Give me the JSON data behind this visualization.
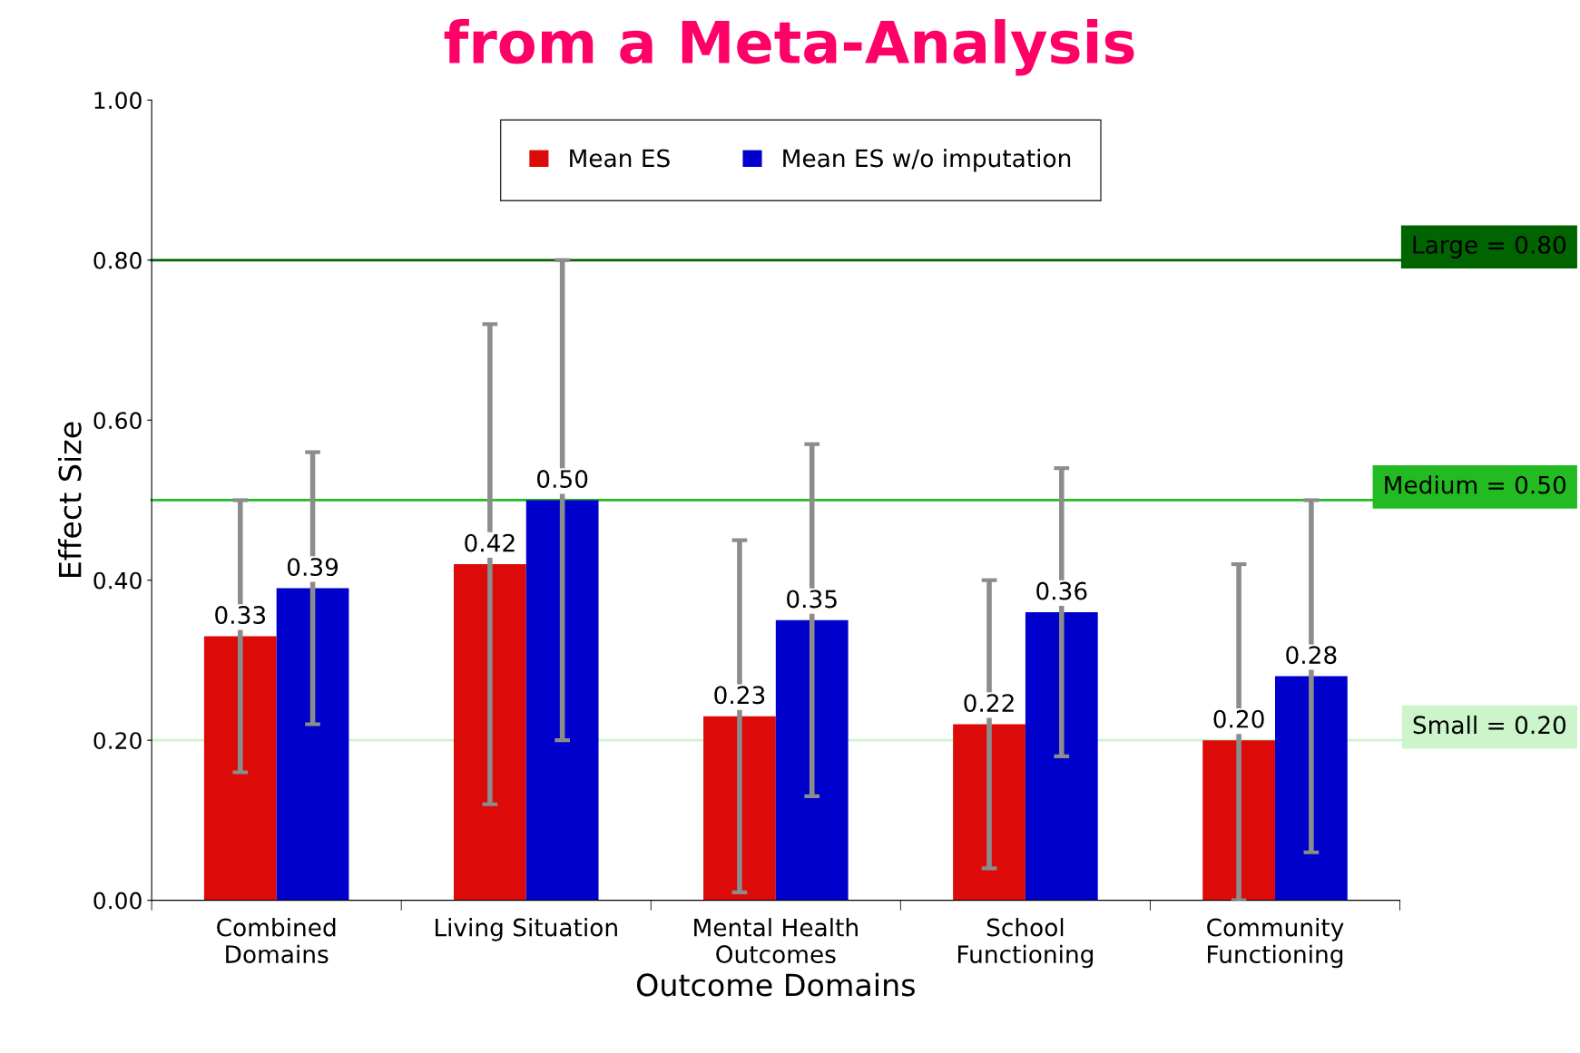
{
  "chart_data": {
    "type": "bar",
    "title": "from a Meta-Analysis",
    "xlabel": "Outcome Domains",
    "ylabel": "Effect Size",
    "categories": [
      "Combined\nDomains",
      "Living Situation",
      "Mental Health\nOutcomes",
      "School\nFunctioning",
      "Community\nFunctioning"
    ],
    "series": [
      {
        "name": "Mean ES",
        "color": "#dd0a0a",
        "values": [
          0.33,
          0.42,
          0.23,
          0.22,
          0.2
        ],
        "value_labels": [
          "0.33",
          "0.42",
          "0.23",
          "0.22",
          "0.20"
        ],
        "errors": [
          [
            0.16,
            0.5
          ],
          [
            0.12,
            0.72
          ],
          [
            0.01,
            0.45
          ],
          [
            0.04,
            0.4
          ],
          [
            0.0,
            0.42
          ]
        ]
      },
      {
        "name": "Mean ES w/o imputation",
        "color": "#0000cc",
        "values": [
          0.39,
          0.5,
          0.35,
          0.36,
          0.28
        ],
        "value_labels": [
          "0.39",
          "0.50",
          "0.35",
          "0.36",
          "0.28"
        ],
        "errors": [
          [
            0.22,
            0.56
          ],
          [
            0.2,
            0.8
          ],
          [
            0.13,
            0.57
          ],
          [
            0.18,
            0.54
          ],
          [
            0.06,
            0.5
          ]
        ]
      }
    ],
    "ylim": [
      0,
      1
    ],
    "yticks": [
      {
        "value": 0,
        "label": "0.00"
      },
      {
        "value": 0.2,
        "label": "0.20"
      },
      {
        "value": 0.4,
        "label": "0.40"
      },
      {
        "value": 0.6,
        "label": "0.60"
      },
      {
        "value": 0.8,
        "label": "0.80"
      },
      {
        "value": 1,
        "label": "1.00"
      }
    ],
    "ref_lines": [
      {
        "axis": "y",
        "value": 0.8,
        "label": "Large = 0.80",
        "color": "#006400"
      },
      {
        "axis": "y",
        "value": 0.5,
        "label": "Medium = 0.50",
        "color": "#22bb22"
      },
      {
        "axis": "y",
        "value": 0.2,
        "label": "Small = 0.20",
        "color": "#ccf5cc"
      }
    ],
    "legend": "top",
    "grid": false
  }
}
